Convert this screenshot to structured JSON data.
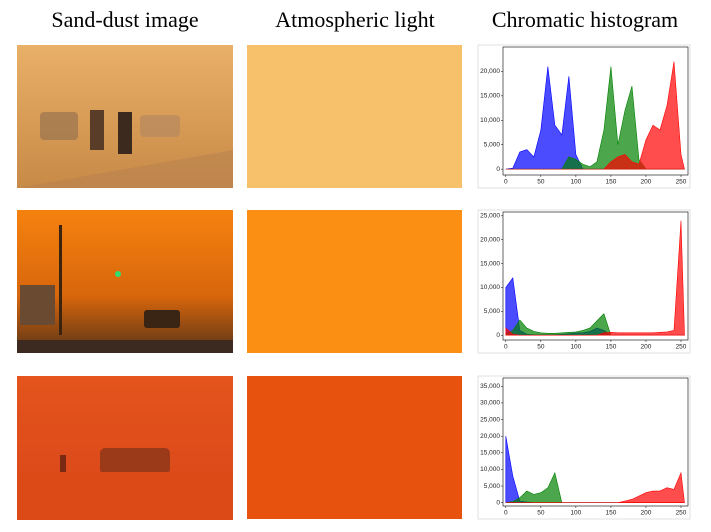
{
  "headers": [
    "Sand-dust image",
    "Atmospheric light",
    "Chromatic histogram"
  ],
  "swatches": [
    {
      "color": "#f7c06a"
    },
    {
      "color": "#fb8f13"
    },
    {
      "color": "#e8520f"
    }
  ],
  "chart_data": [
    {
      "type": "area",
      "x": [
        0,
        10,
        20,
        30,
        40,
        50,
        60,
        70,
        80,
        90,
        100,
        110,
        120,
        130,
        140,
        150,
        160,
        170,
        180,
        190,
        200,
        210,
        220,
        230,
        240,
        250,
        255
      ],
      "xlim": [
        -4,
        260
      ],
      "xticks": [
        0,
        50,
        100,
        150,
        200,
        250
      ],
      "ylim": [
        -1200,
        25000
      ],
      "yticks": [
        0,
        {
          "value": 5000,
          "label": "5,000"
        },
        {
          "value": 10000,
          "label": "10,000"
        },
        {
          "value": 15000,
          "label": "15,000"
        },
        {
          "value": 20000,
          "label": "20,000"
        }
      ],
      "series": [
        {
          "color": "#0000ff",
          "values": [
            0,
            200,
            3500,
            4000,
            2500,
            8000,
            21000,
            9000,
            7000,
            19000,
            3000,
            0,
            0,
            0,
            0,
            0,
            0,
            0,
            0,
            0,
            0,
            0,
            0,
            0,
            0,
            0,
            0
          ]
        },
        {
          "color": "#008000",
          "values": [
            0,
            0,
            0,
            0,
            0,
            0,
            0,
            0,
            0,
            2500,
            2000,
            1000,
            500,
            1500,
            8000,
            21000,
            5000,
            12000,
            17000,
            2000,
            0,
            0,
            0,
            0,
            0,
            0,
            0
          ]
        },
        {
          "color": "#ff0000",
          "values": [
            0,
            0,
            0,
            0,
            0,
            0,
            0,
            0,
            0,
            0,
            0,
            0,
            0,
            0,
            0,
            1500,
            2500,
            3000,
            1500,
            1000,
            6000,
            9000,
            8000,
            13000,
            22000,
            3000,
            0
          ]
        }
      ]
    },
    {
      "type": "area",
      "x": [
        0,
        10,
        20,
        30,
        40,
        50,
        60,
        70,
        80,
        90,
        100,
        110,
        120,
        130,
        140,
        150,
        160,
        170,
        180,
        190,
        200,
        210,
        220,
        230,
        240,
        250,
        255
      ],
      "xlim": [
        -4,
        260
      ],
      "xticks": [
        0,
        50,
        100,
        150,
        200,
        250
      ],
      "ylim": [
        -1000,
        25800
      ],
      "yticks": [
        0,
        {
          "value": 5000,
          "label": "5,000"
        },
        {
          "value": 10000,
          "label": "10,000"
        },
        {
          "value": 15000,
          "label": "15,000"
        },
        {
          "value": 20000,
          "label": "20,000"
        },
        {
          "value": 25000,
          "label": "25,000"
        }
      ],
      "series": [
        {
          "color": "#0000ff",
          "values": [
            10000,
            12000,
            1000,
            200,
            100,
            100,
            100,
            100,
            200,
            300,
            500,
            500,
            800,
            1500,
            1000,
            0,
            0,
            0,
            0,
            0,
            0,
            0,
            0,
            0,
            0,
            0,
            0
          ]
        },
        {
          "color": "#008000",
          "values": [
            300,
            1000,
            3200,
            1500,
            800,
            500,
            400,
            400,
            500,
            600,
            700,
            1000,
            1500,
            3000,
            4500,
            0,
            0,
            0,
            0,
            0,
            0,
            0,
            0,
            0,
            0,
            0,
            0
          ]
        },
        {
          "color": "#ff0000",
          "values": [
            1500,
            200,
            0,
            0,
            0,
            0,
            0,
            0,
            0,
            0,
            0,
            0,
            0,
            0,
            500,
            600,
            500,
            500,
            500,
            500,
            500,
            500,
            600,
            700,
            1000,
            24000,
            0
          ]
        }
      ]
    },
    {
      "type": "area",
      "x": [
        0,
        10,
        20,
        30,
        40,
        50,
        60,
        70,
        80,
        90,
        100,
        110,
        120,
        130,
        140,
        150,
        160,
        170,
        180,
        190,
        200,
        210,
        220,
        230,
        240,
        250,
        255
      ],
      "xlim": [
        -4,
        260
      ],
      "xticks": [
        0,
        50,
        100,
        150,
        200,
        250
      ],
      "ylim": [
        -1000,
        37500
      ],
      "yticks": [
        0,
        {
          "value": 5000,
          "label": "5,000"
        },
        {
          "value": 10000,
          "label": "10,000"
        },
        {
          "value": 15000,
          "label": "15,000"
        },
        {
          "value": 20000,
          "label": "20,000"
        },
        {
          "value": 25000,
          "label": "25,000"
        },
        {
          "value": 30000,
          "label": "30,000"
        },
        {
          "value": 35000,
          "label": "35,000"
        }
      ],
      "series": [
        {
          "color": "#0000ff",
          "values": [
            20000,
            8000,
            500,
            200,
            0,
            0,
            0,
            0,
            0,
            0,
            0,
            0,
            0,
            0,
            0,
            0,
            0,
            0,
            0,
            0,
            0,
            0,
            0,
            0,
            0,
            0,
            0
          ]
        },
        {
          "color": "#008000",
          "values": [
            0,
            300,
            1500,
            3500,
            2500,
            3000,
            4500,
            9000,
            0,
            0,
            0,
            0,
            0,
            0,
            0,
            0,
            0,
            0,
            0,
            0,
            0,
            0,
            0,
            0,
            0,
            0,
            0
          ]
        },
        {
          "color": "#ff0000",
          "values": [
            0,
            0,
            0,
            0,
            0,
            0,
            0,
            0,
            0,
            0,
            0,
            0,
            0,
            0,
            0,
            0,
            0,
            500,
            1000,
            2000,
            3000,
            3500,
            3500,
            4500,
            4000,
            9000,
            0
          ]
        }
      ]
    }
  ]
}
